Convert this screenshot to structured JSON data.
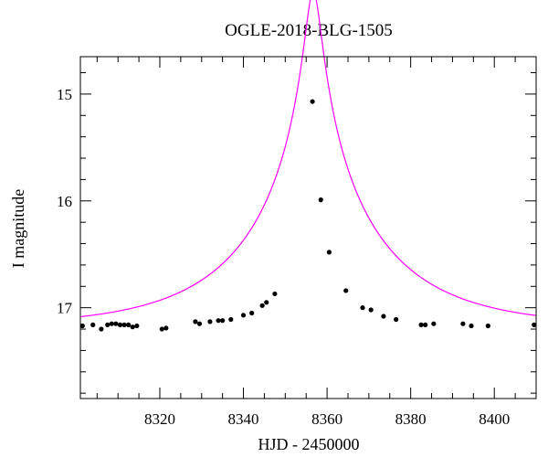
{
  "chart_data": {
    "type": "scatter",
    "title": "OGLE-2018-BLG-1505",
    "xlabel": "HJD - 2450000",
    "ylabel": "I magnitude",
    "xlim": [
      8301,
      8410
    ],
    "ylim": [
      17.85,
      14.65
    ],
    "y_inverted": true,
    "x_ticks": [
      8320,
      8340,
      8360,
      8380,
      8400
    ],
    "x_tick_labels": [
      "8320",
      "8340",
      "8360",
      "8380",
      "8400"
    ],
    "y_ticks": [
      15,
      16,
      17
    ],
    "y_tick_labels": [
      "15",
      "16",
      "17"
    ],
    "x_minor_step": 5,
    "y_minor_step": 0.2,
    "grid": false,
    "series": [
      {
        "kind": "points",
        "color": "#000000",
        "x": [
          8301.5,
          8304,
          8306,
          8307.5,
          8308.5,
          8309.5,
          8310.5,
          8311.5,
          8312.5,
          8313.5,
          8314.5,
          8320.5,
          8321.5,
          8328.5,
          8329.5,
          8332,
          8334,
          8335,
          8337,
          8340,
          8342,
          8344.5,
          8345.5,
          8347.5,
          8356.5,
          8358.5,
          8360.5,
          8364.5,
          8368.5,
          8370.5,
          8373.5,
          8376.5,
          8382.5,
          8383.5,
          8385.5,
          8392.5,
          8394.5,
          8398.5,
          8409.5
        ],
        "y": [
          17.17,
          17.16,
          17.2,
          17.16,
          17.15,
          17.15,
          17.16,
          17.16,
          17.16,
          17.18,
          17.17,
          17.2,
          17.19,
          17.13,
          17.15,
          17.13,
          17.12,
          17.12,
          17.11,
          17.07,
          17.05,
          16.98,
          16.95,
          16.87,
          15.07,
          15.99,
          16.48,
          16.84,
          17.0,
          17.02,
          17.08,
          17.11,
          17.16,
          17.16,
          17.15,
          17.15,
          17.17,
          17.17,
          17.16
        ]
      },
      {
        "kind": "model-line",
        "color": "#ff00ff",
        "model": "paczynski",
        "t0": 8356.7,
        "u0": 0.0555,
        "tE": 32.3,
        "I_base": 17.18
      }
    ]
  }
}
